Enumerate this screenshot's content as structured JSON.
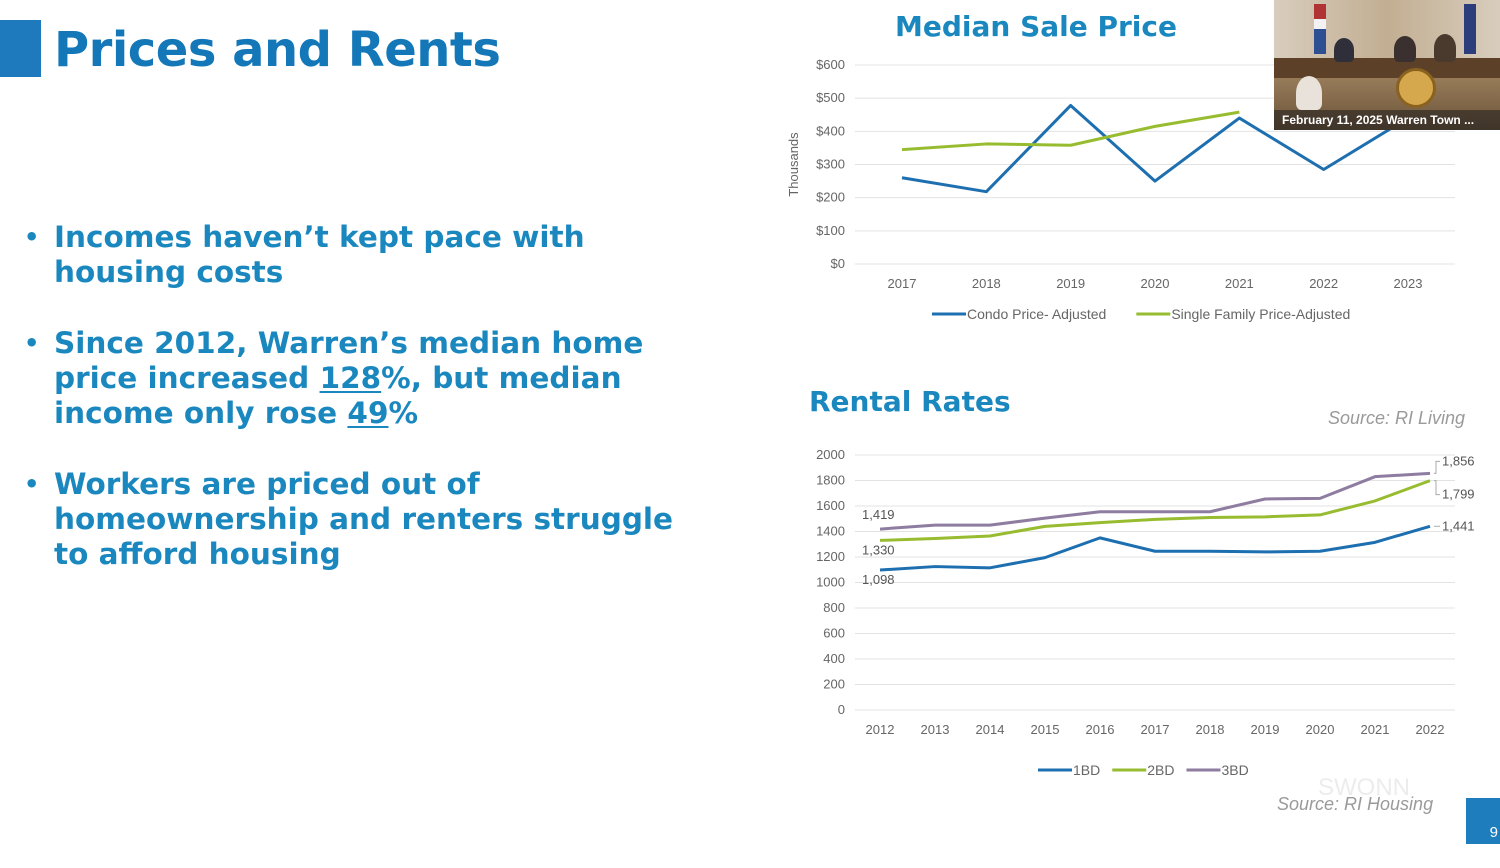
{
  "slide": {
    "title": "Prices and Rents",
    "page_number": "9",
    "bullets": [
      {
        "lines": [
          {
            "text": "Incomes haven’t kept pace with"
          },
          {
            "text": "housing costs"
          }
        ]
      },
      {
        "lines": [
          {
            "text": "Since 2012, Warren’s median home"
          },
          {
            "pre": "price increased ",
            "u": "128",
            "post": "%, but median"
          },
          {
            "pre": "income only rose ",
            "u": "49",
            "post": "%"
          }
        ]
      },
      {
        "lines": [
          {
            "text": "Workers are priced out of"
          },
          {
            "text": "homeownership and renters struggle"
          },
          {
            "text": "to afford housing"
          }
        ]
      }
    ],
    "rental_source": "Source: RI Living",
    "bottom_source": "Source: RI Housing",
    "watermark": "SWONN"
  },
  "video": {
    "caption": "February 11, 2025 Warren Town ..."
  },
  "chart_data": [
    {
      "type": "line",
      "title": "Median Sale Price",
      "ylabel": "Thousands",
      "ytick_labels": [
        "$0",
        "$100",
        "$200",
        "$300",
        "$400",
        "$500",
        "$600"
      ],
      "ylim": [
        0,
        600
      ],
      "categories": [
        "2017",
        "2018",
        "2019",
        "2020",
        "2021",
        "2022",
        "2023"
      ],
      "grid": "horizontal",
      "legend": "bottom",
      "series": [
        {
          "name": "Condo Price- Adjusted",
          "color": "#1d6fb0",
          "values": [
            260,
            218,
            478,
            250,
            440,
            285,
            440
          ]
        },
        {
          "name": "Single Family Price-Adjusted",
          "color": "#97bc2f",
          "values": [
            345,
            362,
            358,
            415,
            458,
            null,
            null
          ]
        }
      ]
    },
    {
      "type": "line",
      "title": "Rental Rates",
      "ytick_labels": [
        "0",
        "200",
        "400",
        "600",
        "800",
        "1000",
        "1200",
        "1400",
        "1600",
        "1800",
        "2000"
      ],
      "ylim": [
        0,
        2000
      ],
      "categories": [
        "2012",
        "2013",
        "2014",
        "2015",
        "2016",
        "2017",
        "2018",
        "2019",
        "2020",
        "2021",
        "2022"
      ],
      "grid": "horizontal",
      "legend": "bottom",
      "series": [
        {
          "name": "1BD",
          "color": "#1d6fb0",
          "values": [
            1098,
            1125,
            1115,
            1195,
            1350,
            1245,
            1245,
            1240,
            1245,
            1315,
            1441
          ]
        },
        {
          "name": "2BD",
          "color": "#97bc2f",
          "values": [
            1330,
            1345,
            1365,
            1440,
            1470,
            1495,
            1510,
            1515,
            1530,
            1640,
            1799
          ]
        },
        {
          "name": "3BD",
          "color": "#8e7da0",
          "values": [
            1419,
            1450,
            1450,
            1505,
            1555,
            1555,
            1555,
            1655,
            1660,
            1830,
            1856
          ]
        }
      ],
      "data_labels": [
        {
          "text": "1,419"
        },
        {
          "text": "1,330"
        },
        {
          "text": "1,098"
        },
        {
          "text": "1,856"
        },
        {
          "text": "1,799"
        },
        {
          "text": "1,441"
        }
      ]
    }
  ]
}
